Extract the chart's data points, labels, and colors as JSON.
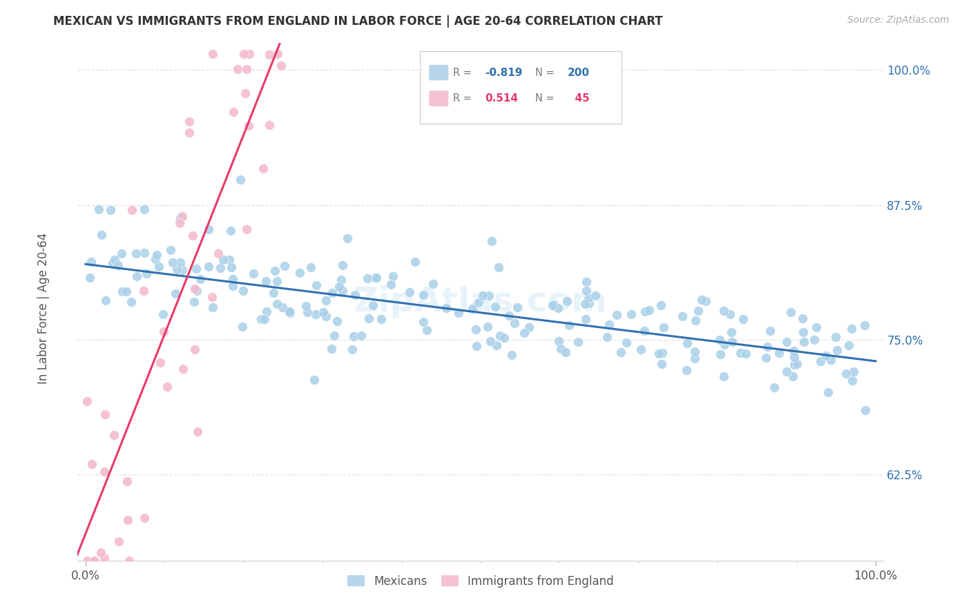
{
  "title": "MEXICAN VS IMMIGRANTS FROM ENGLAND IN LABOR FORCE | AGE 20-64 CORRELATION CHART",
  "source": "Source: ZipAtlas.com",
  "ylabel": "In Labor Force | Age 20-64",
  "blue_R": -0.819,
  "blue_N": 200,
  "pink_R": 0.514,
  "pink_N": 45,
  "blue_color": "#a8cfe8",
  "pink_color": "#f4b8cb",
  "blue_line_color": "#3070b0",
  "pink_line_color": "#e83868",
  "legend_blue_label": "Mexicans",
  "legend_pink_label": "Immigrants from England",
  "xmin": 0.0,
  "xmax": 1.0,
  "ymin": 0.545,
  "ymax": 1.025,
  "yticks": [
    0.625,
    0.75,
    0.875,
    1.0
  ],
  "ytick_labels": [
    "62.5%",
    "75.0%",
    "87.5%",
    "100.0%"
  ],
  "background_color": "#ffffff",
  "grid_color": "#e0e0e0",
  "blue_intercept": 0.82,
  "blue_slope": -0.09,
  "pink_intercept": 0.57,
  "pink_slope": 1.85,
  "blue_seed": 42,
  "pink_seed": 99
}
